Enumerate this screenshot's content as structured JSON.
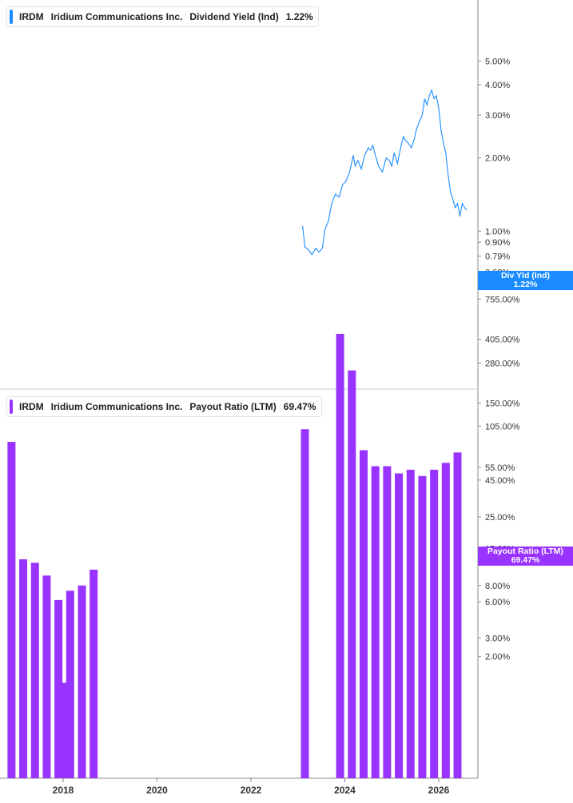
{
  "colors": {
    "yield": "#1a8cff",
    "payout": "#9933ff",
    "axis": "#888888"
  },
  "top_legend": {
    "ticker": "IRDM",
    "company": "Iridium Communications Inc.",
    "metric": "Dividend Yield (Ind)",
    "value": "1.22%"
  },
  "bottom_legend": {
    "ticker": "IRDM",
    "company": "Iridium Communications Inc.",
    "metric": "Payout Ratio (LTM)",
    "value": "69.47%"
  },
  "top_tag": {
    "name": "Div Yld (Ind)",
    "value": "1.22%"
  },
  "bottom_tag": {
    "name": "Payout Ratio (LTM)",
    "value": "69.47%"
  },
  "chart_data": [
    {
      "type": "line",
      "title": "Dividend Yield (Ind)",
      "scale": "log",
      "y_ticks": [
        "5.00%",
        "4.00%",
        "3.00%",
        "2.00%",
        "1.00%",
        "0.90%",
        "0.79%",
        "0.68%"
      ],
      "y_tick_values": [
        5.0,
        4.0,
        3.0,
        2.0,
        1.0,
        0.9,
        0.79,
        0.68
      ],
      "series": [
        {
          "name": "Div Yld (Ind)",
          "points": [
            [
              2023.1,
              1.05
            ],
            [
              2023.15,
              0.86
            ],
            [
              2023.22,
              0.84
            ],
            [
              2023.3,
              0.8
            ],
            [
              2023.38,
              0.85
            ],
            [
              2023.45,
              0.82
            ],
            [
              2023.52,
              0.85
            ],
            [
              2023.58,
              1.02
            ],
            [
              2023.65,
              1.1
            ],
            [
              2023.72,
              1.3
            ],
            [
              2023.8,
              1.42
            ],
            [
              2023.88,
              1.38
            ],
            [
              2023.95,
              1.55
            ],
            [
              2024.02,
              1.6
            ],
            [
              2024.1,
              1.75
            ],
            [
              2024.18,
              2.05
            ],
            [
              2024.22,
              1.85
            ],
            [
              2024.28,
              1.95
            ],
            [
              2024.35,
              1.8
            ],
            [
              2024.42,
              2.05
            ],
            [
              2024.5,
              2.2
            ],
            [
              2024.55,
              2.15
            ],
            [
              2024.6,
              2.25
            ],
            [
              2024.65,
              2.05
            ],
            [
              2024.72,
              1.85
            ],
            [
              2024.8,
              1.75
            ],
            [
              2024.88,
              2.0
            ],
            [
              2024.95,
              1.95
            ],
            [
              2025.0,
              1.85
            ],
            [
              2025.05,
              2.1
            ],
            [
              2025.12,
              1.9
            ],
            [
              2025.2,
              2.25
            ],
            [
              2025.25,
              2.45
            ],
            [
              2025.3,
              2.35
            ],
            [
              2025.35,
              2.3
            ],
            [
              2025.42,
              2.2
            ],
            [
              2025.48,
              2.4
            ],
            [
              2025.52,
              2.6
            ],
            [
              2025.58,
              2.8
            ],
            [
              2025.65,
              3.0
            ],
            [
              2025.7,
              3.5
            ],
            [
              2025.75,
              3.3
            ],
            [
              2025.8,
              3.6
            ],
            [
              2025.85,
              3.8
            ],
            [
              2025.9,
              3.5
            ],
            [
              2025.95,
              3.6
            ],
            [
              2026.0,
              3.2
            ],
            [
              2026.05,
              2.6
            ],
            [
              2026.1,
              2.3
            ],
            [
              2026.15,
              2.1
            ],
            [
              2026.2,
              1.7
            ],
            [
              2026.25,
              1.45
            ],
            [
              2026.3,
              1.35
            ],
            [
              2026.35,
              1.25
            ],
            [
              2026.4,
              1.3
            ],
            [
              2026.45,
              1.15
            ],
            [
              2026.5,
              1.3
            ],
            [
              2026.55,
              1.25
            ],
            [
              2026.6,
              1.22
            ]
          ]
        }
      ]
    },
    {
      "type": "bar",
      "title": "Payout Ratio (LTM)",
      "scale": "symlog",
      "y_ticks": [
        "1,100.00%",
        "755.00%",
        "405.00%",
        "280.00%",
        "150.00%",
        "105.00%",
        "55.00%",
        "45.00%",
        "25.00%",
        "15.00%",
        "8.00%",
        "6.00%",
        "3.00%",
        "2.00%"
      ],
      "y_tick_values": [
        1100,
        755,
        405,
        280,
        150,
        105,
        55,
        45,
        25,
        15,
        8,
        6,
        3,
        2
      ],
      "series": [
        {
          "name": "Payout Ratio (LTM)",
          "points": [
            [
              2016.9,
              82
            ],
            [
              2017.15,
              12.5
            ],
            [
              2017.4,
              11.8
            ],
            [
              2017.65,
              9.5
            ],
            [
              2017.9,
              6.2
            ],
            [
              2018.0,
              1.0
            ],
            [
              2018.15,
              7.3
            ],
            [
              2018.4,
              8.0
            ],
            [
              2018.65,
              10.5
            ],
            [
              2023.15,
              100
            ],
            [
              2023.9,
              440
            ],
            [
              2024.15,
              250
            ],
            [
              2024.4,
              72
            ],
            [
              2024.65,
              56
            ],
            [
              2024.9,
              56
            ],
            [
              2025.15,
              50
            ],
            [
              2025.4,
              53
            ],
            [
              2025.65,
              48
            ],
            [
              2025.9,
              53
            ],
            [
              2026.15,
              59
            ],
            [
              2026.4,
              69.47
            ]
          ]
        }
      ]
    }
  ],
  "x_axis": {
    "ticks": [
      "2018",
      "2020",
      "2022",
      "2024",
      "2026"
    ],
    "tick_values": [
      2018,
      2020,
      2022,
      2024,
      2026
    ]
  }
}
